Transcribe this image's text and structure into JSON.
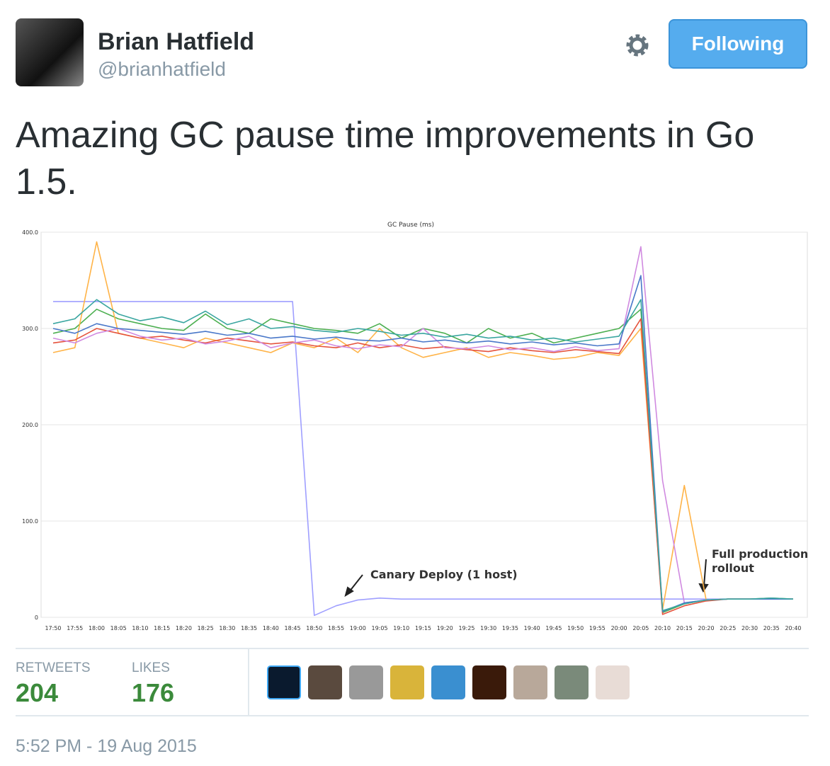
{
  "user": {
    "name": "Brian Hatfield",
    "handle": "@brianhatfield"
  },
  "follow_button": "Following",
  "tweet": {
    "text": "Amazing GC pause time improvements in Go 1.5."
  },
  "chart_data": {
    "type": "line",
    "title": "GC Pause (ms)",
    "categories": [
      "17:50",
      "17:55",
      "18:00",
      "18:05",
      "18:10",
      "18:15",
      "18:20",
      "18:25",
      "18:30",
      "18:35",
      "18:40",
      "18:45",
      "18:50",
      "18:55",
      "19:00",
      "19:05",
      "19:10",
      "19:15",
      "19:20",
      "19:25",
      "19:30",
      "19:35",
      "19:40",
      "19:45",
      "19:50",
      "19:55",
      "20:00",
      "20:05",
      "20:10",
      "20:15",
      "20:20",
      "20:25",
      "20:30",
      "20:35",
      "20:40"
    ],
    "ylim": [
      0,
      400
    ],
    "yticks": [
      0,
      {
        "value": 100,
        "label": "100.0"
      },
      {
        "value": 200,
        "label": "200.0"
      },
      {
        "value": 300,
        "label": "300.0"
      },
      {
        "value": 400,
        "label": "400.0"
      }
    ],
    "grid": true,
    "series": [
      {
        "color": "#9f9fff",
        "values": [
          328,
          328,
          328,
          328,
          328,
          328,
          328,
          328,
          328,
          328,
          328,
          328,
          2,
          12,
          18,
          20,
          19,
          19,
          19,
          19,
          19,
          19,
          19,
          19,
          19,
          19,
          19,
          19,
          19,
          19,
          19,
          19,
          19,
          19,
          19
        ]
      },
      {
        "color": "#4caf50",
        "values": [
          295,
          300,
          320,
          310,
          305,
          300,
          298,
          315,
          300,
          295,
          310,
          305,
          300,
          298,
          295,
          305,
          290,
          300,
          295,
          285,
          300,
          290,
          295,
          285,
          290,
          295,
          300,
          320,
          5,
          14,
          18,
          19,
          19,
          20,
          19
        ]
      },
      {
        "color": "#ffb347",
        "values": [
          275,
          280,
          390,
          295,
          290,
          285,
          280,
          290,
          285,
          280,
          275,
          285,
          280,
          290,
          275,
          300,
          280,
          270,
          275,
          280,
          270,
          275,
          272,
          268,
          270,
          275,
          272,
          300,
          8,
          137,
          18,
          19,
          19,
          19,
          19
        ]
      },
      {
        "color": "#e5533d",
        "values": [
          285,
          288,
          300,
          295,
          290,
          292,
          288,
          285,
          290,
          287,
          284,
          286,
          282,
          280,
          285,
          280,
          283,
          279,
          281,
          278,
          276,
          280,
          277,
          275,
          278,
          276,
          274,
          310,
          3,
          12,
          17,
          19,
          19,
          19,
          19
        ]
      },
      {
        "color": "#d08ae0",
        "values": [
          290,
          285,
          295,
          300,
          292,
          288,
          290,
          284,
          287,
          292,
          280,
          285,
          288,
          282,
          279,
          283,
          281,
          300,
          280,
          279,
          282,
          278,
          280,
          276,
          281,
          277,
          279,
          385,
          142,
          15,
          18,
          19,
          19,
          19,
          19
        ]
      },
      {
        "color": "#4a78c9",
        "values": [
          300,
          295,
          305,
          300,
          298,
          296,
          294,
          297,
          293,
          295,
          290,
          292,
          289,
          291,
          288,
          287,
          290,
          286,
          288,
          285,
          287,
          284,
          286,
          283,
          285,
          282,
          284,
          355,
          6,
          15,
          18,
          19,
          19,
          19,
          19
        ]
      },
      {
        "color": "#3aa6a0",
        "values": [
          305,
          310,
          330,
          315,
          308,
          312,
          306,
          318,
          304,
          310,
          300,
          302,
          298,
          296,
          300,
          297,
          293,
          295,
          291,
          294,
          290,
          292,
          288,
          290,
          286,
          289,
          292,
          330,
          7,
          14,
          18,
          19,
          19,
          20,
          19
        ]
      }
    ],
    "annotations": [
      "Canary Deploy (1 host)",
      "Full production",
      "rollout"
    ]
  },
  "stats": {
    "retweets_label": "RETWEETS",
    "retweets": "204",
    "likes_label": "LIKES",
    "likes": "176"
  },
  "timestamp": "5:52 PM - 19 Aug 2015"
}
